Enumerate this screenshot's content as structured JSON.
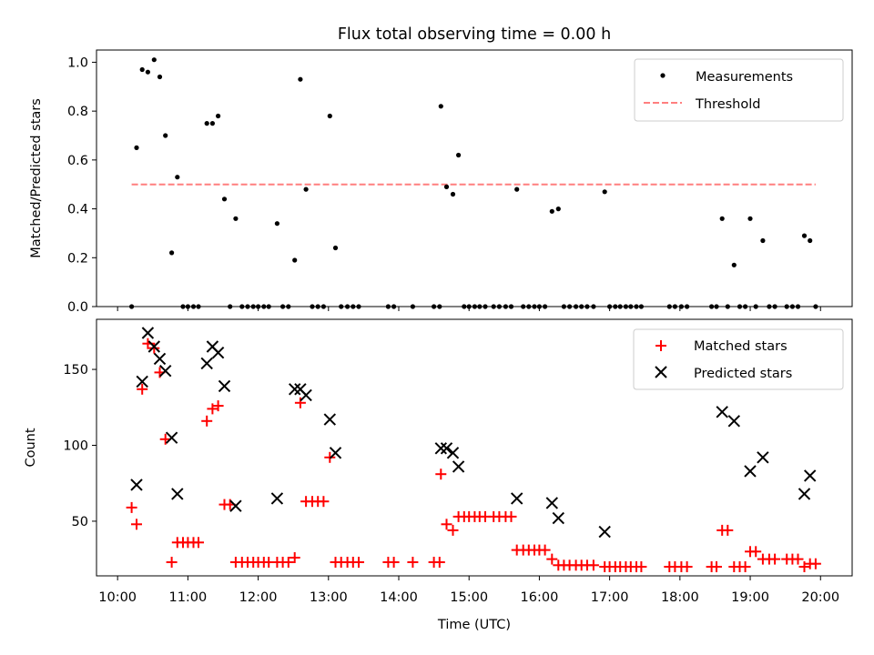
{
  "figure": {
    "title": "Flux total observing time = 0.00 h"
  },
  "colors": {
    "measurements": "#000000",
    "threshold": "#ff7f7f",
    "matched": "#ff0000",
    "predicted": "#000000"
  },
  "chart_data": [
    {
      "type": "scatter",
      "title": "Flux total observing time = 0.00 h",
      "xlabel": "",
      "ylabel": "Matched/Predicted stars",
      "xlim": [
        9.7,
        20.45
      ],
      "ylim": [
        0,
        1.05
      ],
      "yticks": [
        "0.0",
        "0.2",
        "0.4",
        "0.6",
        "0.8",
        "1.0"
      ],
      "legend_position": "top-right",
      "grid": false,
      "series": [
        {
          "name": "Measurements",
          "marker": "dot",
          "color": "#000000",
          "points": [
            [
              10.2,
              0.0
            ],
            [
              10.27,
              0.65
            ],
            [
              10.35,
              0.97
            ],
            [
              10.43,
              0.96
            ],
            [
              10.52,
              1.01
            ],
            [
              10.6,
              0.94
            ],
            [
              10.68,
              0.7
            ],
            [
              10.77,
              0.22
            ],
            [
              10.85,
              0.53
            ],
            [
              10.93,
              0.0
            ],
            [
              11.0,
              0.0
            ],
            [
              11.08,
              0.0
            ],
            [
              11.15,
              0.0
            ],
            [
              11.27,
              0.75
            ],
            [
              11.35,
              0.75
            ],
            [
              11.43,
              0.78
            ],
            [
              11.52,
              0.44
            ],
            [
              11.6,
              0.0
            ],
            [
              11.68,
              0.36
            ],
            [
              11.77,
              0.0
            ],
            [
              11.85,
              0.0
            ],
            [
              11.93,
              0.0
            ],
            [
              12.0,
              0.0
            ],
            [
              12.08,
              0.0
            ],
            [
              12.15,
              0.0
            ],
            [
              12.27,
              0.34
            ],
            [
              12.35,
              0.0
            ],
            [
              12.43,
              0.0
            ],
            [
              12.52,
              0.19
            ],
            [
              12.6,
              0.93
            ],
            [
              12.68,
              0.48
            ],
            [
              12.77,
              0.0
            ],
            [
              12.85,
              0.0
            ],
            [
              12.93,
              0.0
            ],
            [
              13.02,
              0.78
            ],
            [
              13.1,
              0.24
            ],
            [
              13.18,
              0.0
            ],
            [
              13.27,
              0.0
            ],
            [
              13.35,
              0.0
            ],
            [
              13.43,
              0.0
            ],
            [
              13.85,
              0.0
            ],
            [
              13.93,
              0.0
            ],
            [
              14.2,
              0.0
            ],
            [
              14.5,
              0.0
            ],
            [
              14.58,
              0.0
            ],
            [
              14.6,
              0.82
            ],
            [
              14.68,
              0.49
            ],
            [
              14.77,
              0.46
            ],
            [
              14.85,
              0.62
            ],
            [
              14.93,
              0.0
            ],
            [
              15.0,
              0.0
            ],
            [
              15.08,
              0.0
            ],
            [
              15.15,
              0.0
            ],
            [
              15.23,
              0.0
            ],
            [
              15.35,
              0.0
            ],
            [
              15.43,
              0.0
            ],
            [
              15.52,
              0.0
            ],
            [
              15.6,
              0.0
            ],
            [
              15.68,
              0.48
            ],
            [
              15.77,
              0.0
            ],
            [
              15.85,
              0.0
            ],
            [
              15.93,
              0.0
            ],
            [
              16.0,
              0.0
            ],
            [
              16.08,
              0.0
            ],
            [
              16.18,
              0.39
            ],
            [
              16.27,
              0.4
            ],
            [
              16.35,
              0.0
            ],
            [
              16.43,
              0.0
            ],
            [
              16.52,
              0.0
            ],
            [
              16.6,
              0.0
            ],
            [
              16.68,
              0.0
            ],
            [
              16.77,
              0.0
            ],
            [
              16.93,
              0.47
            ],
            [
              17.0,
              0.0
            ],
            [
              17.08,
              0.0
            ],
            [
              17.15,
              0.0
            ],
            [
              17.23,
              0.0
            ],
            [
              17.3,
              0.0
            ],
            [
              17.38,
              0.0
            ],
            [
              17.45,
              0.0
            ],
            [
              17.85,
              0.0
            ],
            [
              17.93,
              0.0
            ],
            [
              18.02,
              0.0
            ],
            [
              18.1,
              0.0
            ],
            [
              18.45,
              0.0
            ],
            [
              18.52,
              0.0
            ],
            [
              18.6,
              0.36
            ],
            [
              18.68,
              0.0
            ],
            [
              18.77,
              0.17
            ],
            [
              18.85,
              0.0
            ],
            [
              18.93,
              0.0
            ],
            [
              19.0,
              0.36
            ],
            [
              19.08,
              0.0
            ],
            [
              19.18,
              0.27
            ],
            [
              19.27,
              0.0
            ],
            [
              19.35,
              0.0
            ],
            [
              19.52,
              0.0
            ],
            [
              19.6,
              0.0
            ],
            [
              19.68,
              0.0
            ],
            [
              19.77,
              0.29
            ],
            [
              19.85,
              0.27
            ],
            [
              19.93,
              0.0
            ]
          ]
        },
        {
          "name": "Threshold",
          "type": "line",
          "style": "dashed",
          "color": "#ff7f7f",
          "points": [
            [
              10.2,
              0.5
            ],
            [
              19.93,
              0.5
            ]
          ]
        }
      ]
    },
    {
      "type": "scatter",
      "title": "",
      "xlabel": "Time (UTC)",
      "ylabel": "Count",
      "xlim": [
        9.7,
        20.45
      ],
      "ylim": [
        14,
        183
      ],
      "yticks": [
        "50",
        "100",
        "150"
      ],
      "xticks": [
        "10:00",
        "11:00",
        "12:00",
        "13:00",
        "14:00",
        "15:00",
        "16:00",
        "17:00",
        "18:00",
        "19:00",
        "20:00"
      ],
      "legend_position": "top-right",
      "grid": false,
      "series": [
        {
          "name": "Matched stars",
          "marker": "plus",
          "color": "#ff0000",
          "points": [
            [
              10.2,
              59
            ],
            [
              10.27,
              48
            ],
            [
              10.35,
              137
            ],
            [
              10.43,
              167
            ],
            [
              10.52,
              164
            ],
            [
              10.6,
              148
            ],
            [
              10.68,
              104
            ],
            [
              10.77,
              23
            ],
            [
              10.85,
              36
            ],
            [
              10.93,
              36
            ],
            [
              11.0,
              36
            ],
            [
              11.08,
              36
            ],
            [
              11.15,
              36
            ],
            [
              11.27,
              116
            ],
            [
              11.35,
              124
            ],
            [
              11.43,
              126
            ],
            [
              11.52,
              61
            ],
            [
              11.6,
              61
            ],
            [
              11.68,
              23
            ],
            [
              11.77,
              23
            ],
            [
              11.85,
              23
            ],
            [
              11.93,
              23
            ],
            [
              12.0,
              23
            ],
            [
              12.08,
              23
            ],
            [
              12.15,
              23
            ],
            [
              12.27,
              23
            ],
            [
              12.35,
              23
            ],
            [
              12.43,
              23
            ],
            [
              12.52,
              26
            ],
            [
              12.6,
              128
            ],
            [
              12.68,
              63
            ],
            [
              12.77,
              63
            ],
            [
              12.85,
              63
            ],
            [
              12.93,
              63
            ],
            [
              13.02,
              92
            ],
            [
              13.1,
              23
            ],
            [
              13.18,
              23
            ],
            [
              13.27,
              23
            ],
            [
              13.35,
              23
            ],
            [
              13.43,
              23
            ],
            [
              13.85,
              23
            ],
            [
              13.93,
              23
            ],
            [
              14.2,
              23
            ],
            [
              14.5,
              23
            ],
            [
              14.58,
              23
            ],
            [
              14.6,
              81
            ],
            [
              14.68,
              48
            ],
            [
              14.77,
              44
            ],
            [
              14.85,
              53
            ],
            [
              14.93,
              53
            ],
            [
              15.0,
              53
            ],
            [
              15.08,
              53
            ],
            [
              15.15,
              53
            ],
            [
              15.23,
              53
            ],
            [
              15.35,
              53
            ],
            [
              15.43,
              53
            ],
            [
              15.52,
              53
            ],
            [
              15.6,
              53
            ],
            [
              15.68,
              31
            ],
            [
              15.77,
              31
            ],
            [
              15.85,
              31
            ],
            [
              15.93,
              31
            ],
            [
              16.0,
              31
            ],
            [
              16.08,
              31
            ],
            [
              16.18,
              25
            ],
            [
              16.27,
              21
            ],
            [
              16.35,
              21
            ],
            [
              16.43,
              21
            ],
            [
              16.52,
              21
            ],
            [
              16.6,
              21
            ],
            [
              16.68,
              21
            ],
            [
              16.77,
              21
            ],
            [
              16.93,
              20
            ],
            [
              17.0,
              20
            ],
            [
              17.08,
              20
            ],
            [
              17.15,
              20
            ],
            [
              17.23,
              20
            ],
            [
              17.3,
              20
            ],
            [
              17.38,
              20
            ],
            [
              17.45,
              20
            ],
            [
              17.85,
              20
            ],
            [
              17.93,
              20
            ],
            [
              18.02,
              20
            ],
            [
              18.1,
              20
            ],
            [
              18.45,
              20
            ],
            [
              18.52,
              20
            ],
            [
              18.6,
              44
            ],
            [
              18.68,
              44
            ],
            [
              18.77,
              20
            ],
            [
              18.85,
              20
            ],
            [
              18.93,
              20
            ],
            [
              19.0,
              30
            ],
            [
              19.08,
              30
            ],
            [
              19.18,
              25
            ],
            [
              19.27,
              25
            ],
            [
              19.35,
              25
            ],
            [
              19.52,
              25
            ],
            [
              19.6,
              25
            ],
            [
              19.68,
              25
            ],
            [
              19.77,
              20
            ],
            [
              19.85,
              22
            ],
            [
              19.93,
              22
            ]
          ]
        },
        {
          "name": "Predicted stars",
          "marker": "cross",
          "color": "#000000",
          "points": [
            [
              10.27,
              74
            ],
            [
              10.35,
              142
            ],
            [
              10.43,
              174
            ],
            [
              10.52,
              165
            ],
            [
              10.6,
              157
            ],
            [
              10.68,
              149
            ],
            [
              10.77,
              105
            ],
            [
              10.85,
              68
            ],
            [
              11.27,
              154
            ],
            [
              11.35,
              165
            ],
            [
              11.43,
              161
            ],
            [
              11.52,
              139
            ],
            [
              11.68,
              60
            ],
            [
              12.27,
              65
            ],
            [
              12.52,
              137
            ],
            [
              12.6,
              137
            ],
            [
              12.68,
              133
            ],
            [
              13.02,
              117
            ],
            [
              13.1,
              95
            ],
            [
              14.6,
              98
            ],
            [
              14.68,
              98
            ],
            [
              14.77,
              95
            ],
            [
              14.85,
              86
            ],
            [
              15.68,
              65
            ],
            [
              16.18,
              62
            ],
            [
              16.27,
              52
            ],
            [
              16.93,
              43
            ],
            [
              18.6,
              122
            ],
            [
              18.77,
              116
            ],
            [
              19.0,
              83
            ],
            [
              19.18,
              92
            ],
            [
              19.77,
              68
            ],
            [
              19.85,
              80
            ]
          ]
        }
      ]
    }
  ]
}
